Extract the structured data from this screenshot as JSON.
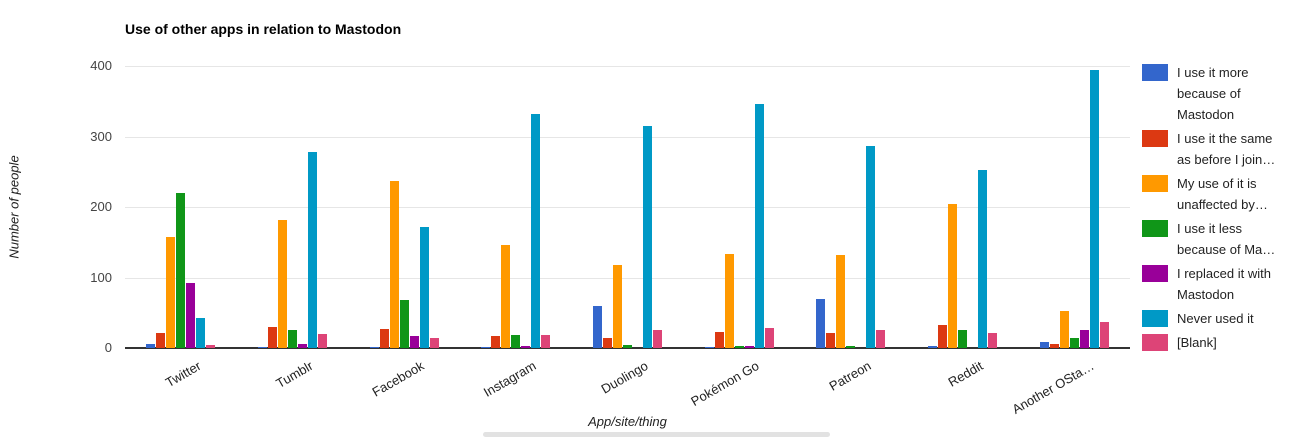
{
  "chart_data": {
    "type": "bar",
    "title": "Use of other apps in relation to Mastodon",
    "xlabel": "App/site/thing",
    "ylabel": "Number of people",
    "ylim": [
      0,
      400
    ],
    "yticks": [
      0,
      100,
      200,
      300,
      400
    ],
    "grid": true,
    "legend_position": "right",
    "categories": [
      "Twitter",
      "Tumblr",
      "Facebook",
      "Instagram",
      "Duolingo",
      "Pokémon Go",
      "Patreon",
      "Reddit",
      "Another OSta…"
    ],
    "series": [
      {
        "name": "I use it more because of Mastodon",
        "color": "#3366cc",
        "values": [
          5,
          1,
          2,
          2,
          60,
          1,
          70,
          3,
          8
        ]
      },
      {
        "name": "I use it the same as before I join…",
        "color": "#dc3912",
        "values": [
          21,
          30,
          27,
          17,
          14,
          22,
          21,
          32,
          6
        ]
      },
      {
        "name": "My use of it is unaffected by…",
        "color": "#ff9900",
        "values": [
          157,
          181,
          237,
          146,
          118,
          134,
          132,
          204,
          52
        ]
      },
      {
        "name": "I use it less because of Ma…",
        "color": "#109618",
        "values": [
          220,
          25,
          68,
          19,
          4,
          3,
          3,
          26,
          14
        ]
      },
      {
        "name": "I replaced it with Mastodon",
        "color": "#990099",
        "values": [
          92,
          5,
          17,
          3,
          0,
          3,
          0,
          0,
          26
        ]
      },
      {
        "name": "Never used it",
        "color": "#0099c6",
        "values": [
          42,
          278,
          172,
          332,
          315,
          346,
          287,
          252,
          394
        ]
      },
      {
        "name": "[Blank]",
        "color": "#dd4477",
        "values": [
          4,
          20,
          14,
          18,
          26,
          29,
          25,
          21,
          37
        ]
      }
    ]
  }
}
